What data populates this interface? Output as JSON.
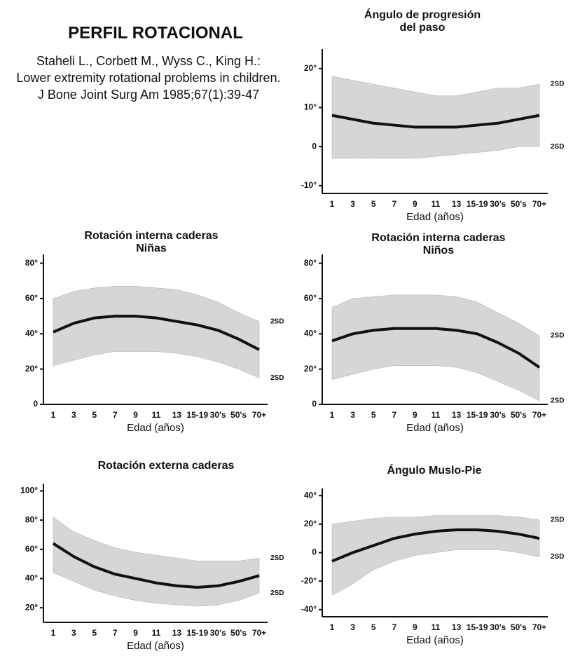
{
  "header": {
    "title": "PERFIL ROTACIONAL",
    "reference": [
      "Staheli L., Corbett M., Wyss C., King H.:",
      "Lower extremity rotational problems in children.",
      "J Bone Joint Surg Am 1985;67(1):39-47"
    ]
  },
  "chart_data": [
    {
      "type": "band-line",
      "title": [
        "Ángulo de progresión",
        "del paso"
      ],
      "xlabel": "Edad (años)",
      "categories": [
        "1",
        "3",
        "5",
        "7",
        "9",
        "11",
        "13",
        "15-19",
        "30's",
        "50's",
        "70+"
      ],
      "mean": [
        8,
        7,
        6,
        5.5,
        5,
        5,
        5,
        5.5,
        6,
        7,
        8
      ],
      "upper_2sd": [
        18,
        17,
        16,
        15,
        14,
        13,
        13,
        14,
        15,
        15,
        16
      ],
      "lower_2sd": [
        -3,
        -3,
        -3,
        -3,
        -3,
        -2.5,
        -2,
        -1.5,
        -1,
        0,
        0
      ],
      "annotations": [
        "2SD",
        "2SD"
      ],
      "ylim": [
        -12,
        25
      ],
      "yticks": [
        {
          "value": -10,
          "label": "-10°"
        },
        0,
        {
          "value": 10,
          "label": "10°"
        },
        {
          "value": 20,
          "label": "20°"
        }
      ]
    },
    {
      "type": "band-line",
      "title": [
        "Rotación interna caderas",
        "Niñas"
      ],
      "xlabel": "Edad (años)",
      "categories": [
        "1",
        "3",
        "5",
        "7",
        "9",
        "11",
        "13",
        "15-19",
        "30's",
        "50's",
        "70+"
      ],
      "mean": [
        41,
        46,
        49,
        50,
        50,
        49,
        47,
        45,
        42,
        37,
        31
      ],
      "upper_2sd": [
        60,
        64,
        66,
        67,
        67,
        66,
        65,
        62,
        58,
        52,
        47
      ],
      "lower_2sd": [
        22,
        25,
        28,
        30,
        30,
        30,
        29,
        27,
        24,
        20,
        15
      ],
      "annotations": [
        "2SD",
        "2SD"
      ],
      "ylim": [
        0,
        85
      ],
      "yticks": [
        0,
        {
          "value": 20,
          "label": "20°"
        },
        {
          "value": 40,
          "label": "40°"
        },
        {
          "value": 60,
          "label": "60°"
        },
        {
          "value": 80,
          "label": "80°"
        }
      ]
    },
    {
      "type": "band-line",
      "title": [
        "Rotación interna caderas",
        "Niños"
      ],
      "xlabel": "Edad (años)",
      "categories": [
        "1",
        "3",
        "5",
        "7",
        "9",
        "11",
        "13",
        "15-19",
        "30's",
        "50's",
        "70+"
      ],
      "mean": [
        36,
        40,
        42,
        43,
        43,
        43,
        42,
        40,
        35,
        29,
        21
      ],
      "upper_2sd": [
        55,
        60,
        61,
        62,
        62,
        62,
        61,
        58,
        52,
        46,
        39
      ],
      "lower_2sd": [
        14,
        17,
        20,
        22,
        22,
        22,
        21,
        18,
        13,
        8,
        2
      ],
      "annotations": [
        "2SD",
        "2SD"
      ],
      "ylim": [
        0,
        85
      ],
      "yticks": [
        0,
        {
          "value": 20,
          "label": "20°"
        },
        {
          "value": 40,
          "label": "40°"
        },
        {
          "value": 60,
          "label": "60°"
        },
        {
          "value": 80,
          "label": "80°"
        }
      ]
    },
    {
      "type": "band-line",
      "title": [
        "Rotación externa caderas"
      ],
      "xlabel": "Edad (años)",
      "categories": [
        "1",
        "3",
        "5",
        "7",
        "9",
        "11",
        "13",
        "15-19",
        "30's",
        "50's",
        "70+"
      ],
      "mean": [
        64,
        55,
        48,
        43,
        40,
        37,
        35,
        34,
        35,
        38,
        42
      ],
      "upper_2sd": [
        82,
        72,
        66,
        61,
        58,
        56,
        54,
        52,
        52,
        52,
        54
      ],
      "lower_2sd": [
        44,
        38,
        32,
        28,
        25,
        23,
        22,
        21,
        22,
        25,
        30
      ],
      "annotations": [
        "2SD",
        "2SD"
      ],
      "ylim": [
        10,
        105
      ],
      "yticks": [
        {
          "value": 20,
          "label": "20°"
        },
        {
          "value": 40,
          "label": "40°"
        },
        {
          "value": 60,
          "label": "60°"
        },
        {
          "value": 80,
          "label": "80°"
        },
        {
          "value": 100,
          "label": "100°"
        }
      ]
    },
    {
      "type": "band-line",
      "title": [
        "Ángulo Muslo-Pie"
      ],
      "xlabel": "Edad (años)",
      "categories": [
        "1",
        "3",
        "5",
        "7",
        "9",
        "11",
        "13",
        "15-19",
        "30's",
        "50's",
        "70+"
      ],
      "mean": [
        -6,
        0,
        5,
        10,
        13,
        15,
        16,
        16,
        15,
        13,
        10
      ],
      "upper_2sd": [
        20,
        22,
        24,
        25,
        25,
        26,
        26,
        26,
        26,
        25,
        23
      ],
      "lower_2sd": [
        -30,
        -22,
        -12,
        -6,
        -2,
        0,
        2,
        2,
        2,
        0,
        -3
      ],
      "annotations": [
        "2SD",
        "2SD"
      ],
      "ylim": [
        -45,
        45
      ],
      "yticks": [
        {
          "value": -40,
          "label": "-40°"
        },
        {
          "value": -20,
          "label": "-20°"
        },
        0,
        {
          "value": 20,
          "label": "20°"
        },
        {
          "value": 40,
          "label": "40°"
        }
      ]
    }
  ]
}
